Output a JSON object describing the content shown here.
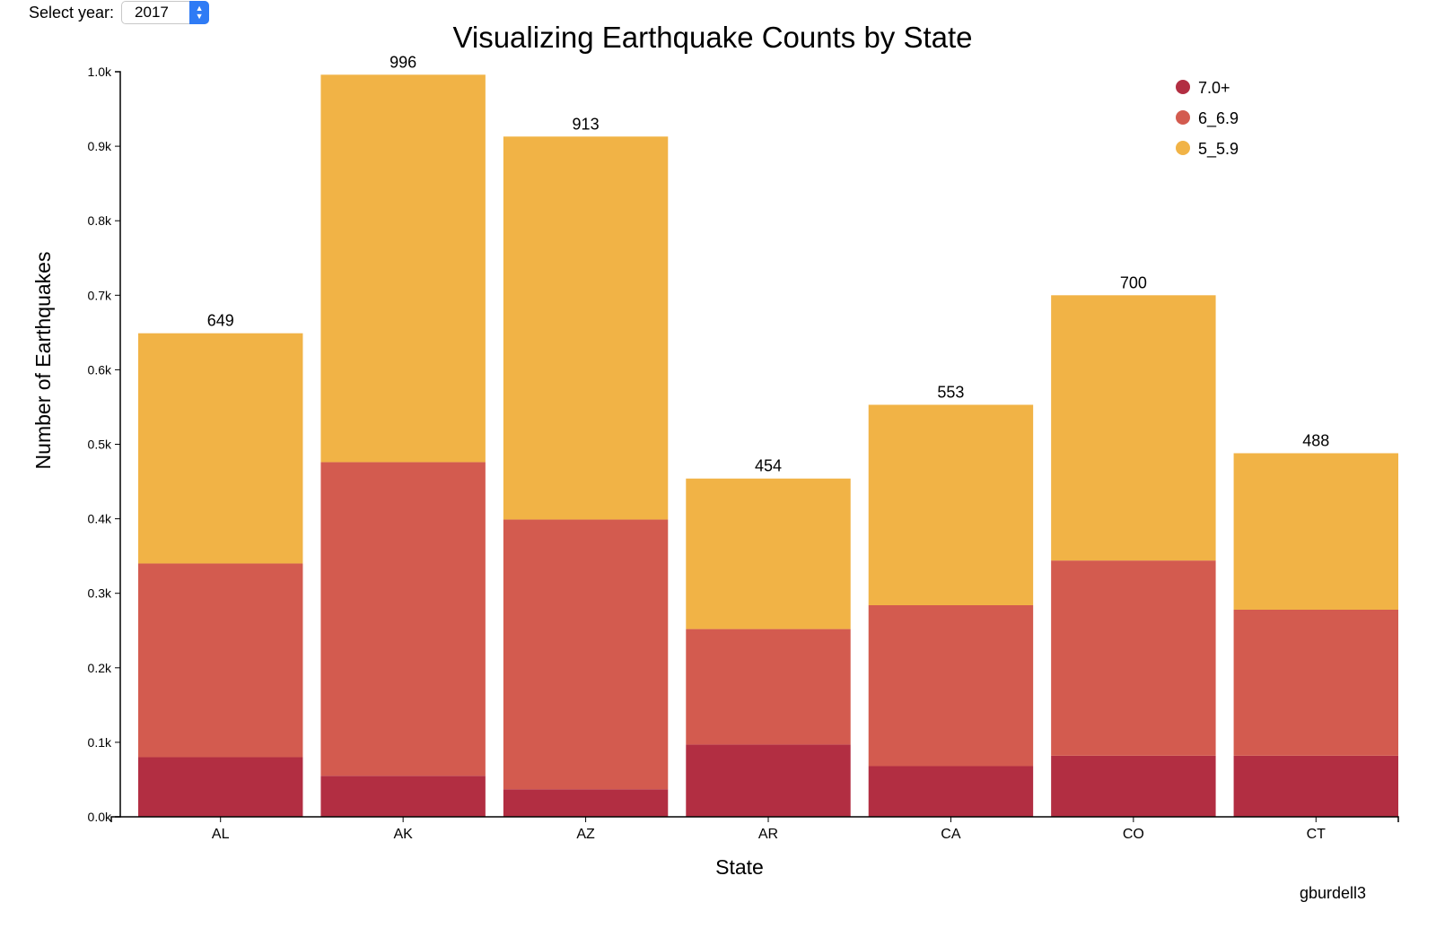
{
  "controls": {
    "year_label": "Select year:",
    "year_value": "2017"
  },
  "chart_data": {
    "type": "bar",
    "stacked": true,
    "title": "Visualizing Earthquake Counts by State",
    "xlabel": "State",
    "ylabel": "Number of Earthquakes",
    "categories": [
      "AL",
      "AK",
      "AZ",
      "AR",
      "CA",
      "CO",
      "CT"
    ],
    "series": [
      {
        "name": "7.0+",
        "color": "#b22e42",
        "values": [
          80,
          55,
          37,
          97,
          68,
          82,
          82
        ]
      },
      {
        "name": "6_6.9",
        "color": "#d35b4f",
        "values": [
          260,
          421,
          362,
          155,
          216,
          262,
          196
        ]
      },
      {
        "name": "5_5.9",
        "color": "#f1b346",
        "values": [
          309,
          520,
          514,
          202,
          269,
          356,
          210
        ]
      }
    ],
    "totals": [
      "649",
      "996",
      "913",
      "454",
      "553",
      "700",
      "488"
    ],
    "ylim": [
      0,
      1000
    ],
    "yticks": [
      0,
      100,
      200,
      300,
      400,
      500,
      600,
      700,
      800,
      900,
      1000
    ],
    "ytick_labels": [
      "0.0k",
      "0.1k",
      "0.2k",
      "0.3k",
      "0.4k",
      "0.5k",
      "0.6k",
      "0.7k",
      "0.8k",
      "0.9k",
      "1.0k"
    ],
    "legend_order": [
      "7.0+",
      "6_6.9",
      "5_5.9"
    ],
    "legend_position": "top-right",
    "grid": false
  },
  "credit": "gburdell3"
}
